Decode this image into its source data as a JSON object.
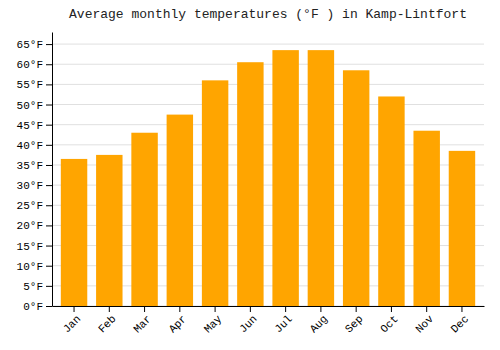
{
  "chart_data": {
    "type": "bar",
    "title": "Average monthly temperatures (°F ) in Kamp-Lintfort",
    "categories": [
      "Jan",
      "Feb",
      "Mar",
      "Apr",
      "May",
      "Jun",
      "Jul",
      "Aug",
      "Sep",
      "Oct",
      "Nov",
      "Dec"
    ],
    "values": [
      36.5,
      37.5,
      43,
      47.5,
      56,
      60.5,
      63.5,
      63.5,
      58.5,
      52,
      43.5,
      38.5
    ],
    "color": "#FFA500",
    "ylim": [
      0,
      68
    ],
    "yticks": [
      {
        "value": 0,
        "label": "0°F"
      },
      {
        "value": 5,
        "label": "5°F"
      },
      {
        "value": 10,
        "label": "10°F"
      },
      {
        "value": 15,
        "label": "15°F"
      },
      {
        "value": 20,
        "label": "20°F"
      },
      {
        "value": 25,
        "label": "25°F"
      },
      {
        "value": 30,
        "label": "30°F"
      },
      {
        "value": 35,
        "label": "35°F"
      },
      {
        "value": 40,
        "label": "40°F"
      },
      {
        "value": 45,
        "label": "45°F"
      },
      {
        "value": 50,
        "label": "50°F"
      },
      {
        "value": 55,
        "label": "55°F"
      },
      {
        "value": 60,
        "label": "60°F"
      },
      {
        "value": 65,
        "label": "65°F"
      }
    ],
    "grid": true
  }
}
